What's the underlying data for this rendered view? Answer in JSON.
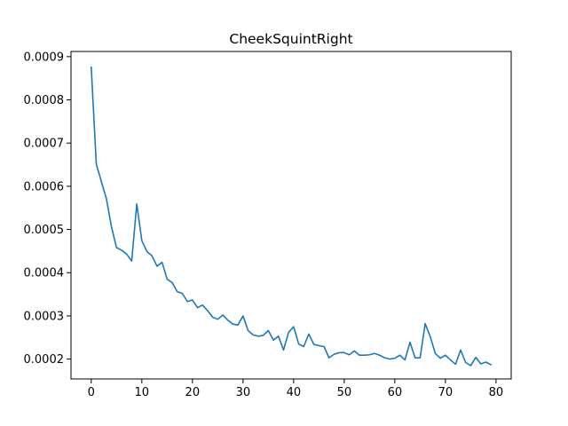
{
  "chart_data": {
    "type": "line",
    "title": "CheekSquintRight",
    "xlabel": "",
    "ylabel": "",
    "xlim": [
      -4,
      83
    ],
    "ylim": [
      0.000154,
      0.000912
    ],
    "x_ticks": [
      0,
      10,
      20,
      30,
      40,
      50,
      60,
      70,
      80
    ],
    "x_tick_labels": [
      "0",
      "10",
      "20",
      "30",
      "40",
      "50",
      "60",
      "70",
      "80"
    ],
    "y_ticks": [
      0.0002,
      0.0003,
      0.0004,
      0.0005,
      0.0006,
      0.0007,
      0.0008,
      0.0009
    ],
    "y_tick_labels": [
      "0.0002",
      "0.0003",
      "0.0004",
      "0.0005",
      "0.0006",
      "0.0007",
      "0.0008",
      "0.0009"
    ],
    "grid": false,
    "legend": "none",
    "series": [
      {
        "color": "#1f77b4",
        "x": [
          0,
          1,
          2,
          3,
          4,
          5,
          6,
          7,
          8,
          9,
          10,
          11,
          12,
          13,
          14,
          15,
          16,
          17,
          18,
          19,
          20,
          21,
          22,
          23,
          24,
          25,
          26,
          27,
          28,
          29,
          30,
          31,
          32,
          33,
          34,
          35,
          36,
          37,
          38,
          39,
          40,
          41,
          42,
          43,
          44,
          45,
          46,
          47,
          48,
          49,
          50,
          51,
          52,
          53,
          54,
          55,
          56,
          57,
          58,
          59,
          60,
          61,
          62,
          63,
          64,
          65,
          66,
          67,
          68,
          69,
          70,
          71,
          72,
          73,
          74,
          75,
          76,
          77,
          78,
          79
        ],
        "values": [
          0.000876,
          0.000651,
          0.000611,
          0.000571,
          0.000506,
          0.000458,
          0.000452,
          0.000443,
          0.000427,
          0.000559,
          0.000474,
          0.000449,
          0.000439,
          0.000415,
          0.000424,
          0.000385,
          0.000377,
          0.000356,
          0.000352,
          0.000333,
          0.000337,
          0.000319,
          0.000325,
          0.000312,
          0.000297,
          0.000292,
          0.000302,
          0.00029,
          0.000281,
          0.000279,
          0.0003,
          0.000266,
          0.000256,
          0.000253,
          0.000255,
          0.000266,
          0.000244,
          0.000253,
          0.000221,
          0.000262,
          0.000275,
          0.000235,
          0.000229,
          0.000258,
          0.000234,
          0.000231,
          0.000229,
          0.000203,
          0.000211,
          0.000215,
          0.000215,
          0.00021,
          0.000219,
          0.000209,
          0.000209,
          0.00021,
          0.000213,
          0.000209,
          0.000203,
          0.0002,
          0.000202,
          0.000209,
          0.000198,
          0.000239,
          0.000203,
          0.000203,
          0.000282,
          0.000252,
          0.000213,
          0.000202,
          0.000209,
          0.000198,
          0.000188,
          0.000221,
          0.000192,
          0.000185,
          0.000204,
          0.000189,
          0.000193,
          0.000187
        ]
      }
    ]
  }
}
